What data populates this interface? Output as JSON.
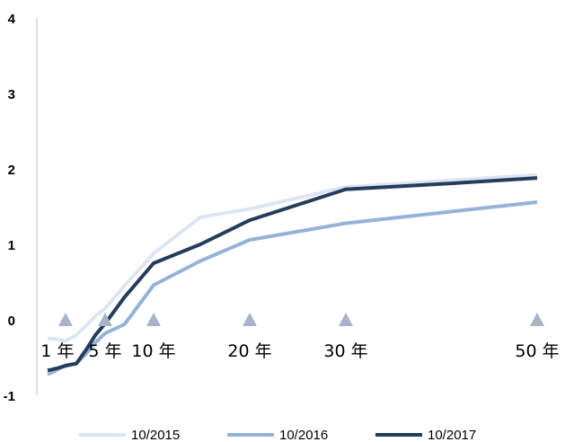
{
  "chart_data": {
    "type": "line",
    "title": "",
    "xlabel": "",
    "ylabel": "",
    "ylim": [
      -1,
      4
    ],
    "yticks": [
      "4",
      "3",
      "2",
      "1",
      "0",
      "-1"
    ],
    "grid": false,
    "legend_position": "bottom",
    "x": [
      0.083,
      0.25,
      0.5,
      1,
      2,
      3,
      4,
      5,
      7,
      10,
      15,
      20,
      30,
      40,
      50
    ],
    "series": [
      {
        "name": "10/2015",
        "color": "#dce6f2",
        "values": [
          -0.25,
          -0.25,
          -0.26,
          -0.28,
          -0.2,
          -0.08,
          0.05,
          0.15,
          0.45,
          0.88,
          1.36,
          1.47,
          1.76,
          1.84,
          1.92
        ]
      },
      {
        "name": "10/2016",
        "color": "#95b3d7",
        "values": [
          -0.72,
          -0.7,
          -0.66,
          -0.6,
          -0.58,
          -0.45,
          -0.3,
          -0.18,
          -0.06,
          0.46,
          0.78,
          1.06,
          1.28,
          1.42,
          1.56
        ]
      },
      {
        "name": "10/2017",
        "color": "#243d5c",
        "values": [
          -0.67,
          -0.66,
          -0.64,
          -0.61,
          -0.58,
          -0.4,
          -0.2,
          -0.05,
          0.3,
          0.75,
          1.0,
          1.32,
          1.73,
          1.8,
          1.88
        ]
      }
    ],
    "markers": {
      "color": "#a6b4c8",
      "y": 0,
      "x": [
        1,
        5,
        10,
        20,
        30,
        50
      ]
    },
    "term_labels": [
      {
        "text": "1 年",
        "x": 0.5
      },
      {
        "text": "5 年",
        "x": 5
      },
      {
        "text": "10 年",
        "x": 10
      },
      {
        "text": "20 年",
        "x": 20
      },
      {
        "text": "30 年",
        "x": 30
      },
      {
        "text": "50 年",
        "x": 50
      }
    ]
  }
}
